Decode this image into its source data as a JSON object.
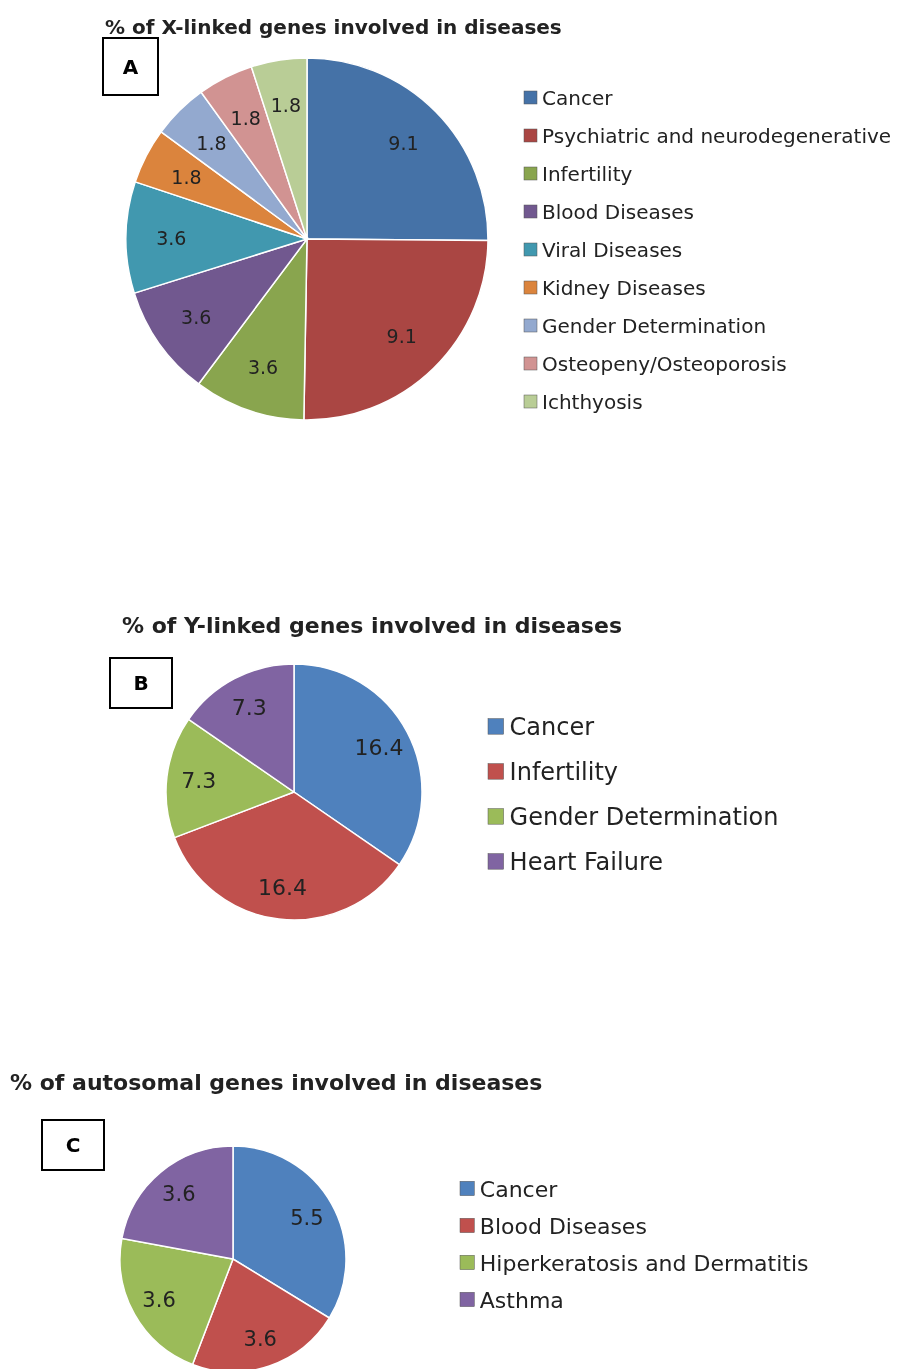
{
  "chart_data": [
    {
      "type": "pie",
      "title": "% of X-linked genes involved in diseases",
      "annotations": [
        "A"
      ],
      "categories": [
        "Cancer",
        "Psychiatric and neurodegenerative",
        "Infertility",
        "Blood Diseases",
        "Viral Diseases",
        "Kidney Diseases",
        "Gender Determination",
        "Osteopeny/Osteoporosis",
        "Ichthyosis"
      ],
      "values": [
        9.1,
        9.1,
        3.6,
        3.6,
        3.6,
        1.8,
        1.8,
        1.8,
        1.8
      ],
      "colors": [
        "#4572a7",
        "#aa4643",
        "#89a54e",
        "#71588f",
        "#4198af",
        "#db843d",
        "#93a9cf",
        "#d19392",
        "#b9cd96"
      ],
      "data_labels": true,
      "legend": "right"
    },
    {
      "type": "pie",
      "title": "% of Y-linked genes involved in  diseases",
      "annotations": [
        "B"
      ],
      "categories": [
        "Cancer",
        "Infertility",
        "Gender Determination",
        "Heart Failure"
      ],
      "values": [
        16.4,
        16.4,
        7.3,
        7.3
      ],
      "colors": [
        "#4f81bd",
        "#c0504d",
        "#9bbb59",
        "#8064a2"
      ],
      "data_labels": true,
      "legend": "right"
    },
    {
      "type": "pie",
      "title": "% of autosomal genes involved in diseases",
      "annotations": [
        "C"
      ],
      "categories": [
        "Cancer",
        "Blood Diseases",
        "Hiperkeratosis and Dermatitis",
        "Asthma"
      ],
      "values": [
        5.5,
        3.6,
        3.6,
        3.6
      ],
      "colors": [
        "#4f81bd",
        "#c0504d",
        "#9bbb59",
        "#8064a2"
      ],
      "data_labels": true,
      "legend": "right"
    }
  ]
}
